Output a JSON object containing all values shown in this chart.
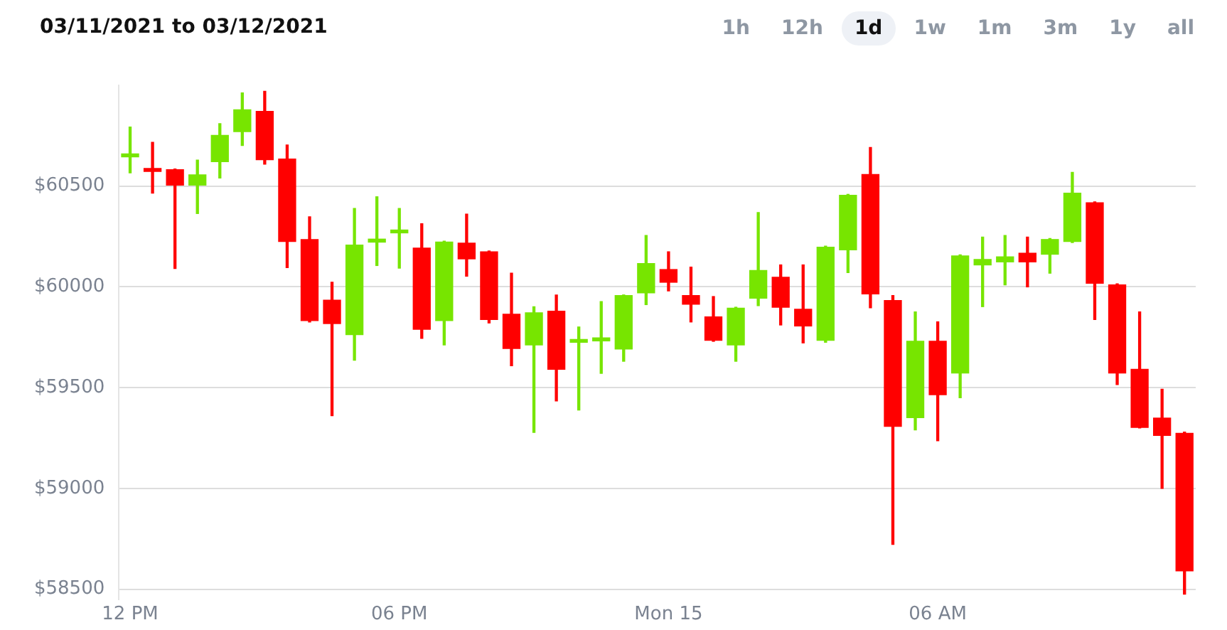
{
  "chart_data": {
    "type": "candlestick",
    "title": "03/11/2021 to 03/12/2021",
    "annotations": [
      "1h",
      "12h",
      "1d",
      "1w",
      "1m",
      "3m",
      "1y",
      "all"
    ],
    "categories": [
      "12 PM",
      null,
      null,
      null,
      null,
      null,
      null,
      null,
      null,
      null,
      null,
      null,
      "06 PM",
      null,
      null,
      null,
      null,
      null,
      null,
      null,
      null,
      null,
      null,
      null,
      "Mon 15",
      null,
      null,
      null,
      null,
      null,
      null,
      null,
      null,
      null,
      null,
      null,
      "06 AM",
      null,
      null,
      null,
      null,
      null,
      null,
      null,
      null,
      null,
      null,
      null
    ],
    "ohlc": [
      [
        60645,
        60793,
        60566,
        60660
      ],
      [
        60581,
        60717,
        60465,
        60573
      ],
      [
        60581,
        60585,
        60091,
        60505
      ],
      [
        60505,
        60629,
        60364,
        60556
      ],
      [
        60621,
        60810,
        60540,
        60752
      ],
      [
        60770,
        60962,
        60702,
        60879
      ],
      [
        60871,
        60970,
        60609,
        60631
      ],
      [
        60634,
        60704,
        60096,
        60225
      ],
      [
        60235,
        60348,
        59826,
        59833
      ],
      [
        59934,
        60023,
        59361,
        59818
      ],
      [
        59763,
        60389,
        59636,
        60207
      ],
      [
        60222,
        60447,
        60106,
        60237
      ],
      [
        60268,
        60389,
        60093,
        60278
      ],
      [
        60192,
        60313,
        59745,
        59790
      ],
      [
        59833,
        60227,
        59712,
        60222
      ],
      [
        60217,
        60361,
        60053,
        60139
      ],
      [
        60174,
        60178,
        59821,
        59838
      ],
      [
        59864,
        60068,
        59609,
        59694
      ],
      [
        59712,
        59901,
        59278,
        59871
      ],
      [
        59879,
        59960,
        59434,
        59591
      ],
      [
        59725,
        59801,
        59389,
        59732
      ],
      [
        59732,
        59927,
        59571,
        59747
      ],
      [
        59692,
        59960,
        59631,
        59957
      ],
      [
        59970,
        60255,
        59912,
        60116
      ],
      [
        60086,
        60174,
        59980,
        60023
      ],
      [
        59957,
        60098,
        59826,
        59914
      ],
      [
        59851,
        59952,
        59730,
        59735
      ],
      [
        59712,
        59899,
        59631,
        59894
      ],
      [
        59944,
        60369,
        59907,
        60081
      ],
      [
        60048,
        60109,
        59811,
        59899
      ],
      [
        59889,
        60109,
        59722,
        59806
      ],
      [
        59735,
        60202,
        59725,
        60197
      ],
      [
        60184,
        60459,
        60071,
        60454
      ],
      [
        60558,
        60692,
        59896,
        59965
      ],
      [
        59932,
        59957,
        58722,
        59308
      ],
      [
        59351,
        59876,
        59290,
        59730
      ],
      [
        59730,
        59826,
        59237,
        59465
      ],
      [
        59573,
        60159,
        59450,
        60154
      ],
      [
        60109,
        60247,
        59902,
        60136
      ],
      [
        60124,
        60255,
        60010,
        60149
      ],
      [
        60167,
        60247,
        60000,
        60124
      ],
      [
        60162,
        60240,
        60068,
        60235
      ],
      [
        60225,
        60568,
        60220,
        60465
      ],
      [
        60417,
        60422,
        59838,
        60018
      ],
      [
        60010,
        60015,
        59515,
        59573
      ],
      [
        59591,
        59876,
        59300,
        59303
      ],
      [
        59349,
        59492,
        59000,
        59263
      ],
      [
        59273,
        59280,
        58475,
        58591
      ]
    ],
    "colors": [
      "#77e500",
      "#ff0000",
      "#ff0000",
      "#77e500",
      "#77e500",
      "#77e500",
      "#ff0000",
      "#ff0000",
      "#ff0000",
      "#ff0000",
      "#77e500",
      "#77e500",
      "#77e500",
      "#ff0000",
      "#77e500",
      "#ff0000",
      "#ff0000",
      "#ff0000",
      "#77e500",
      "#ff0000",
      "#77e500",
      "#77e500",
      "#77e500",
      "#77e500",
      "#ff0000",
      "#ff0000",
      "#ff0000",
      "#77e500",
      "#77e500",
      "#ff0000",
      "#ff0000",
      "#77e500",
      "#77e500",
      "#ff0000",
      "#ff0000",
      "#77e500",
      "#ff0000",
      "#77e500",
      "#77e500",
      "#77e500",
      "#ff0000",
      "#77e500",
      "#77e500",
      "#ff0000",
      "#ff0000",
      "#ff0000",
      "#ff0000",
      "#ff0000"
    ],
    "ylim": [
      58450,
      61000
    ],
    "yticks": [
      {
        "value": 58500,
        "label": "$58500"
      },
      {
        "value": 59000,
        "label": "$59000"
      },
      {
        "value": 59500,
        "label": "$59500"
      },
      {
        "value": 60000,
        "label": "$60000"
      },
      {
        "value": 60500,
        "label": "$60500"
      }
    ],
    "grid": "y"
  }
}
